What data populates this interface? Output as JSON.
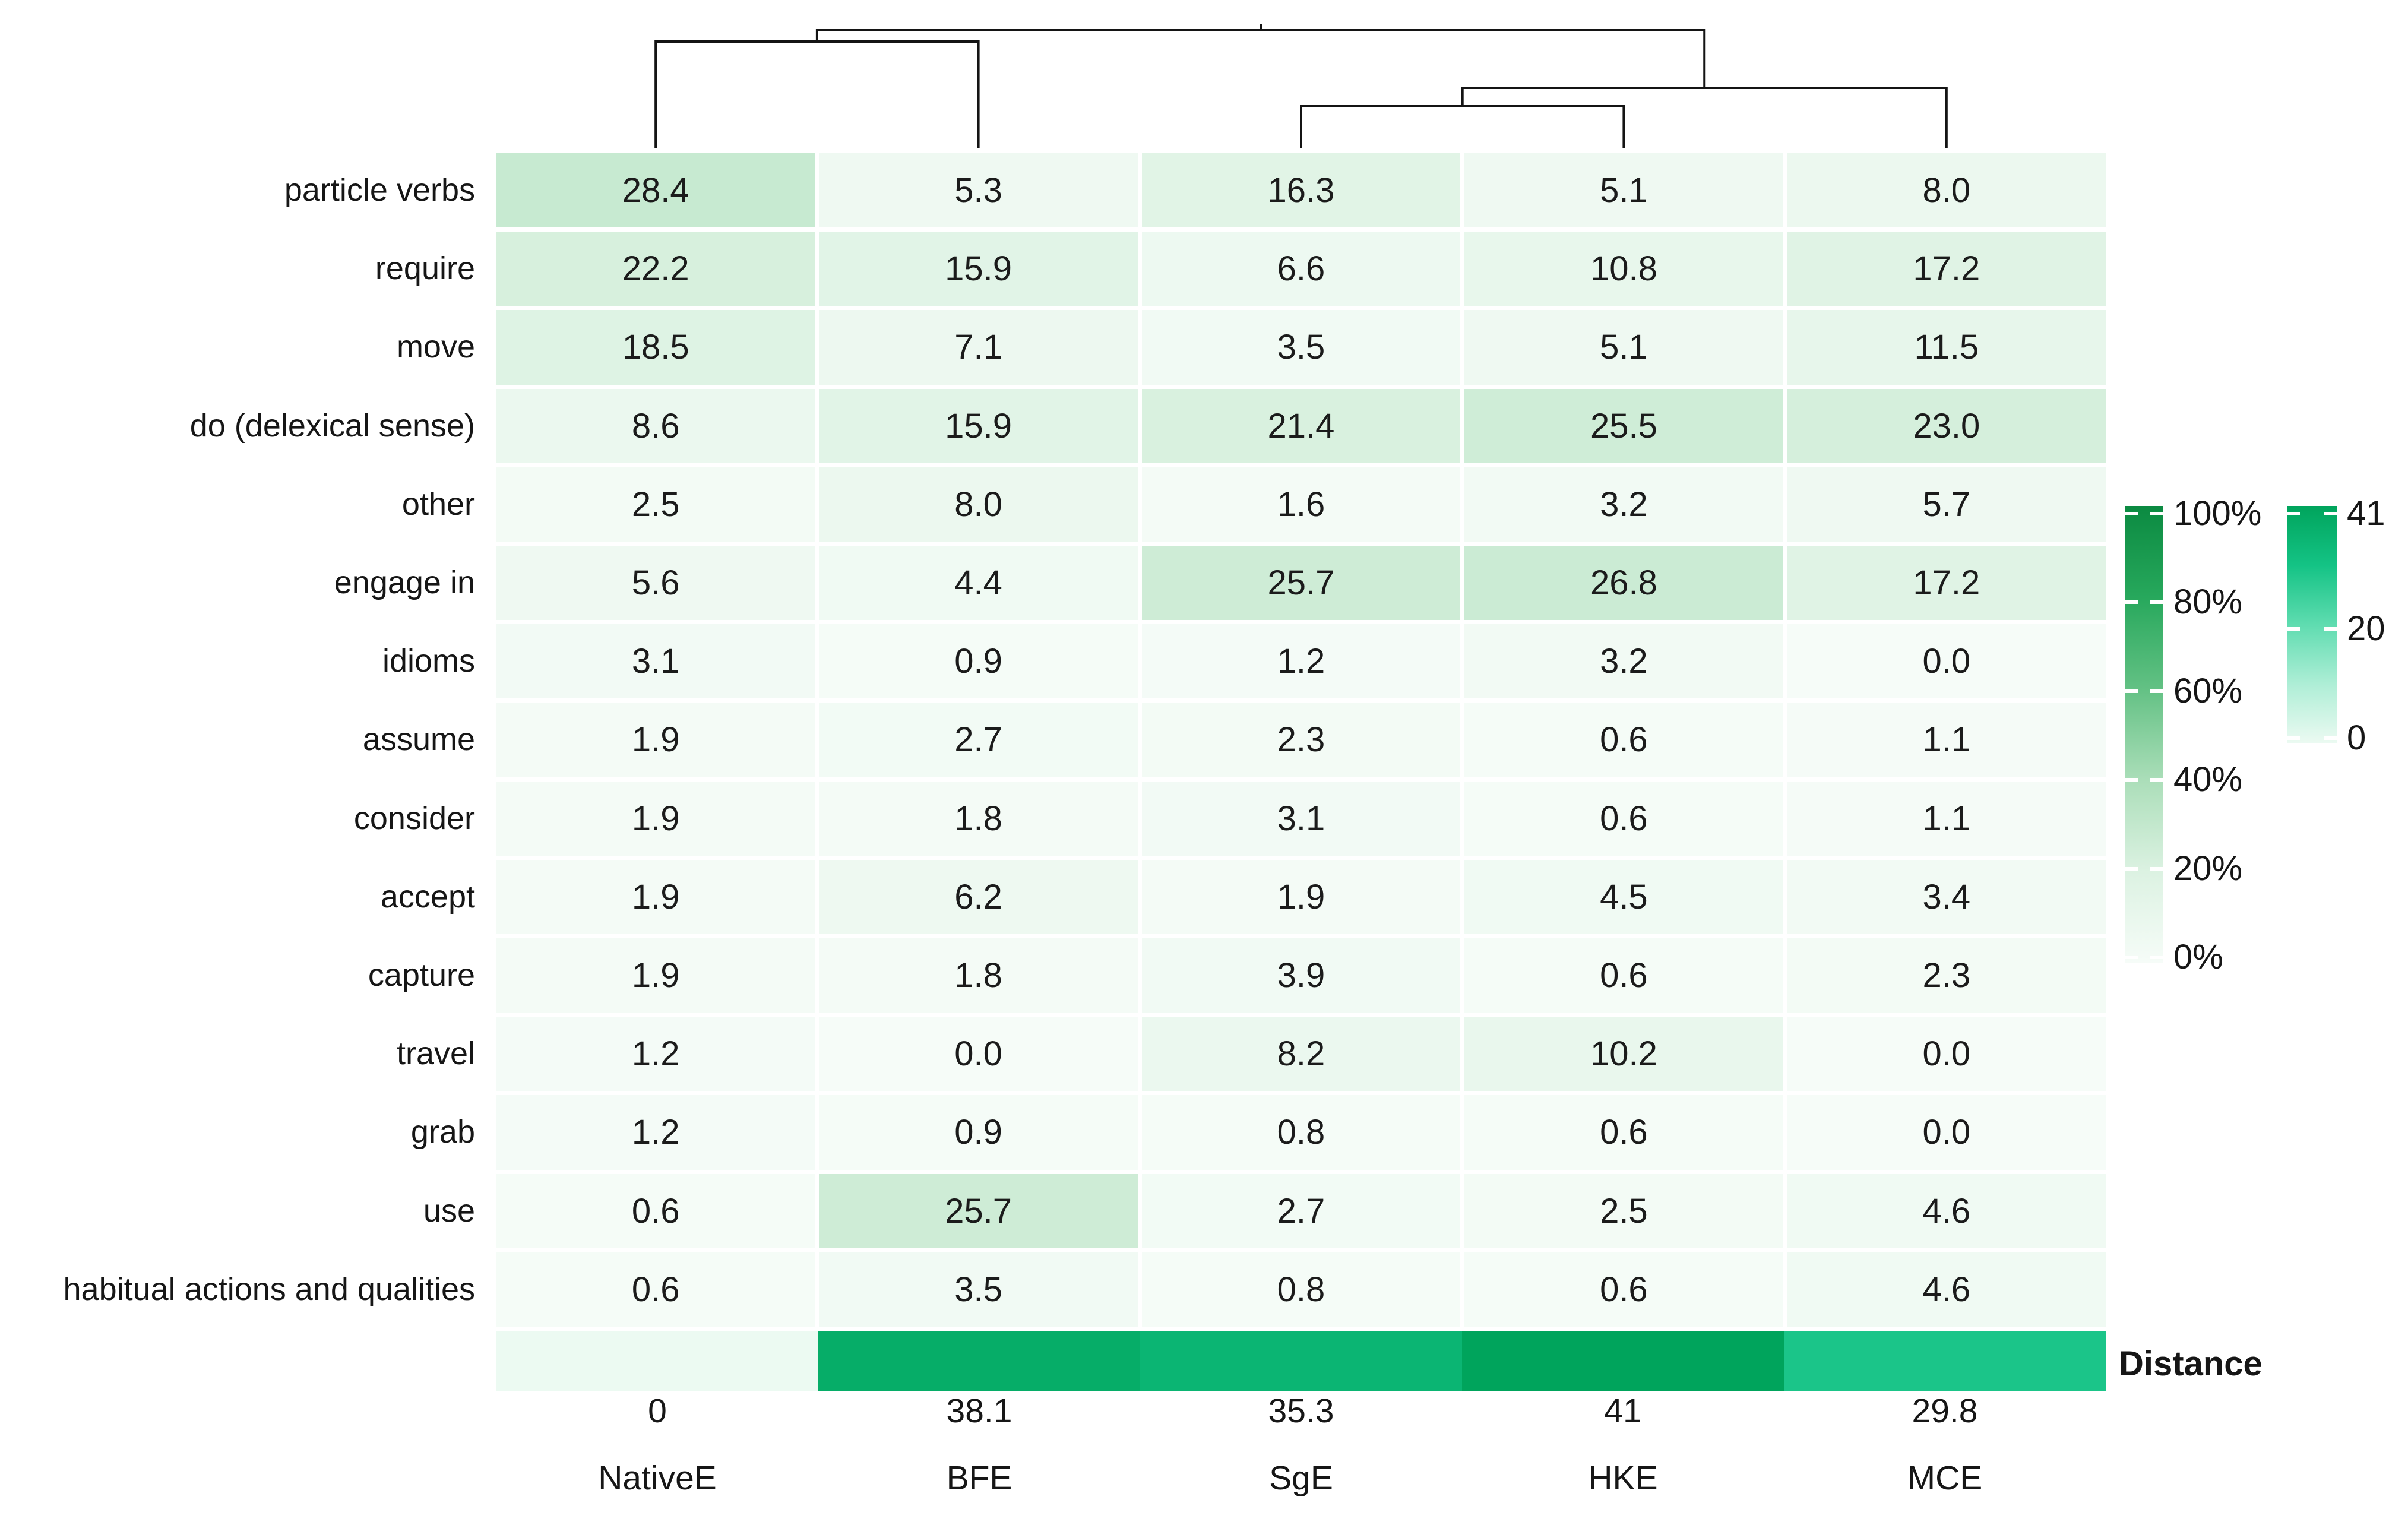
{
  "chart_data": {
    "type": "heatmap",
    "title": "",
    "columns": [
      "NativeE",
      "BFE",
      "SgE",
      "HKE",
      "MCE"
    ],
    "rows": [
      "particle verbs",
      "require",
      "move",
      "do (delexical sense)",
      "other",
      "engage in",
      "idioms",
      "assume",
      "consider",
      "accept",
      "capture",
      "travel",
      "grab",
      "use",
      "habitual actions and qualities"
    ],
    "values": [
      [
        28.4,
        5.3,
        16.3,
        5.1,
        8.0
      ],
      [
        22.2,
        15.9,
        6.6,
        10.8,
        17.2
      ],
      [
        18.5,
        7.1,
        3.5,
        5.1,
        11.5
      ],
      [
        8.6,
        15.9,
        21.4,
        25.5,
        23.0
      ],
      [
        2.5,
        8.0,
        1.6,
        3.2,
        5.7
      ],
      [
        5.6,
        4.4,
        25.7,
        26.8,
        17.2
      ],
      [
        3.1,
        0.9,
        1.2,
        3.2,
        0.0
      ],
      [
        1.9,
        2.7,
        2.3,
        0.6,
        1.1
      ],
      [
        1.9,
        1.8,
        3.1,
        0.6,
        1.1
      ],
      [
        1.9,
        6.2,
        1.9,
        4.5,
        3.4
      ],
      [
        1.9,
        1.8,
        3.9,
        0.6,
        2.3
      ],
      [
        1.2,
        0.0,
        8.2,
        10.2,
        0.0
      ],
      [
        1.2,
        0.9,
        0.8,
        0.6,
        0.0
      ],
      [
        0.6,
        25.7,
        2.7,
        2.5,
        4.6
      ],
      [
        0.6,
        3.5,
        0.8,
        0.6,
        4.6
      ]
    ],
    "value_scale_max_percent": 100,
    "distance_row": {
      "label": "Distance",
      "values": [
        0,
        38.1,
        35.3,
        41,
        29.8
      ],
      "labels": [
        "0",
        "38.1",
        "35.3",
        "41",
        "29.8"
      ],
      "max": 41
    },
    "legends": {
      "percent": {
        "ticks": [
          "100%",
          "80%",
          "60%",
          "40%",
          "20%",
          "0%"
        ]
      },
      "distance": {
        "ticks": [
          "41",
          "20",
          "0"
        ],
        "tick_values": [
          41,
          20,
          0
        ],
        "max": 41
      }
    },
    "dendrogram": {
      "leaf_order": [
        "NativeE",
        "BFE",
        "SgE",
        "HKE",
        "MCE"
      ],
      "merges": [
        {
          "id": "A",
          "left": {
            "type": "leaf",
            "index": 0
          },
          "right": {
            "type": "leaf",
            "index": 1
          },
          "height": 70
        },
        {
          "id": "B",
          "left": {
            "type": "leaf",
            "index": 2
          },
          "right": {
            "type": "leaf",
            "index": 3
          },
          "height": 178
        },
        {
          "id": "C",
          "left": {
            "type": "node",
            "id": "B"
          },
          "right": {
            "type": "leaf",
            "index": 4
          },
          "height": 148
        },
        {
          "id": "ROOT",
          "left": {
            "type": "node",
            "id": "A"
          },
          "right": {
            "type": "node",
            "id": "C"
          },
          "height": 50
        }
      ]
    },
    "colors": {
      "background": "#ffffff",
      "text": "#161616",
      "dendrogram_line": "#141414",
      "cell_scale": [
        {
          "t": 0.0,
          "color": "#f6fcf8"
        },
        {
          "t": 0.2,
          "color": "#dcf2e2"
        },
        {
          "t": 0.4,
          "color": "#abdeb9"
        },
        {
          "t": 0.6,
          "color": "#63c184"
        },
        {
          "t": 0.8,
          "color": "#27a85c"
        },
        {
          "t": 1.0,
          "color": "#0b8a41"
        }
      ],
      "distance_scale": [
        {
          "t": 0.0,
          "color": "#ecfaf2"
        },
        {
          "t": 0.25,
          "color": "#aeeed6"
        },
        {
          "t": 0.5,
          "color": "#5fdcb0"
        },
        {
          "t": 0.75,
          "color": "#14c385"
        },
        {
          "t": 1.0,
          "color": "#00a45c"
        }
      ]
    }
  }
}
